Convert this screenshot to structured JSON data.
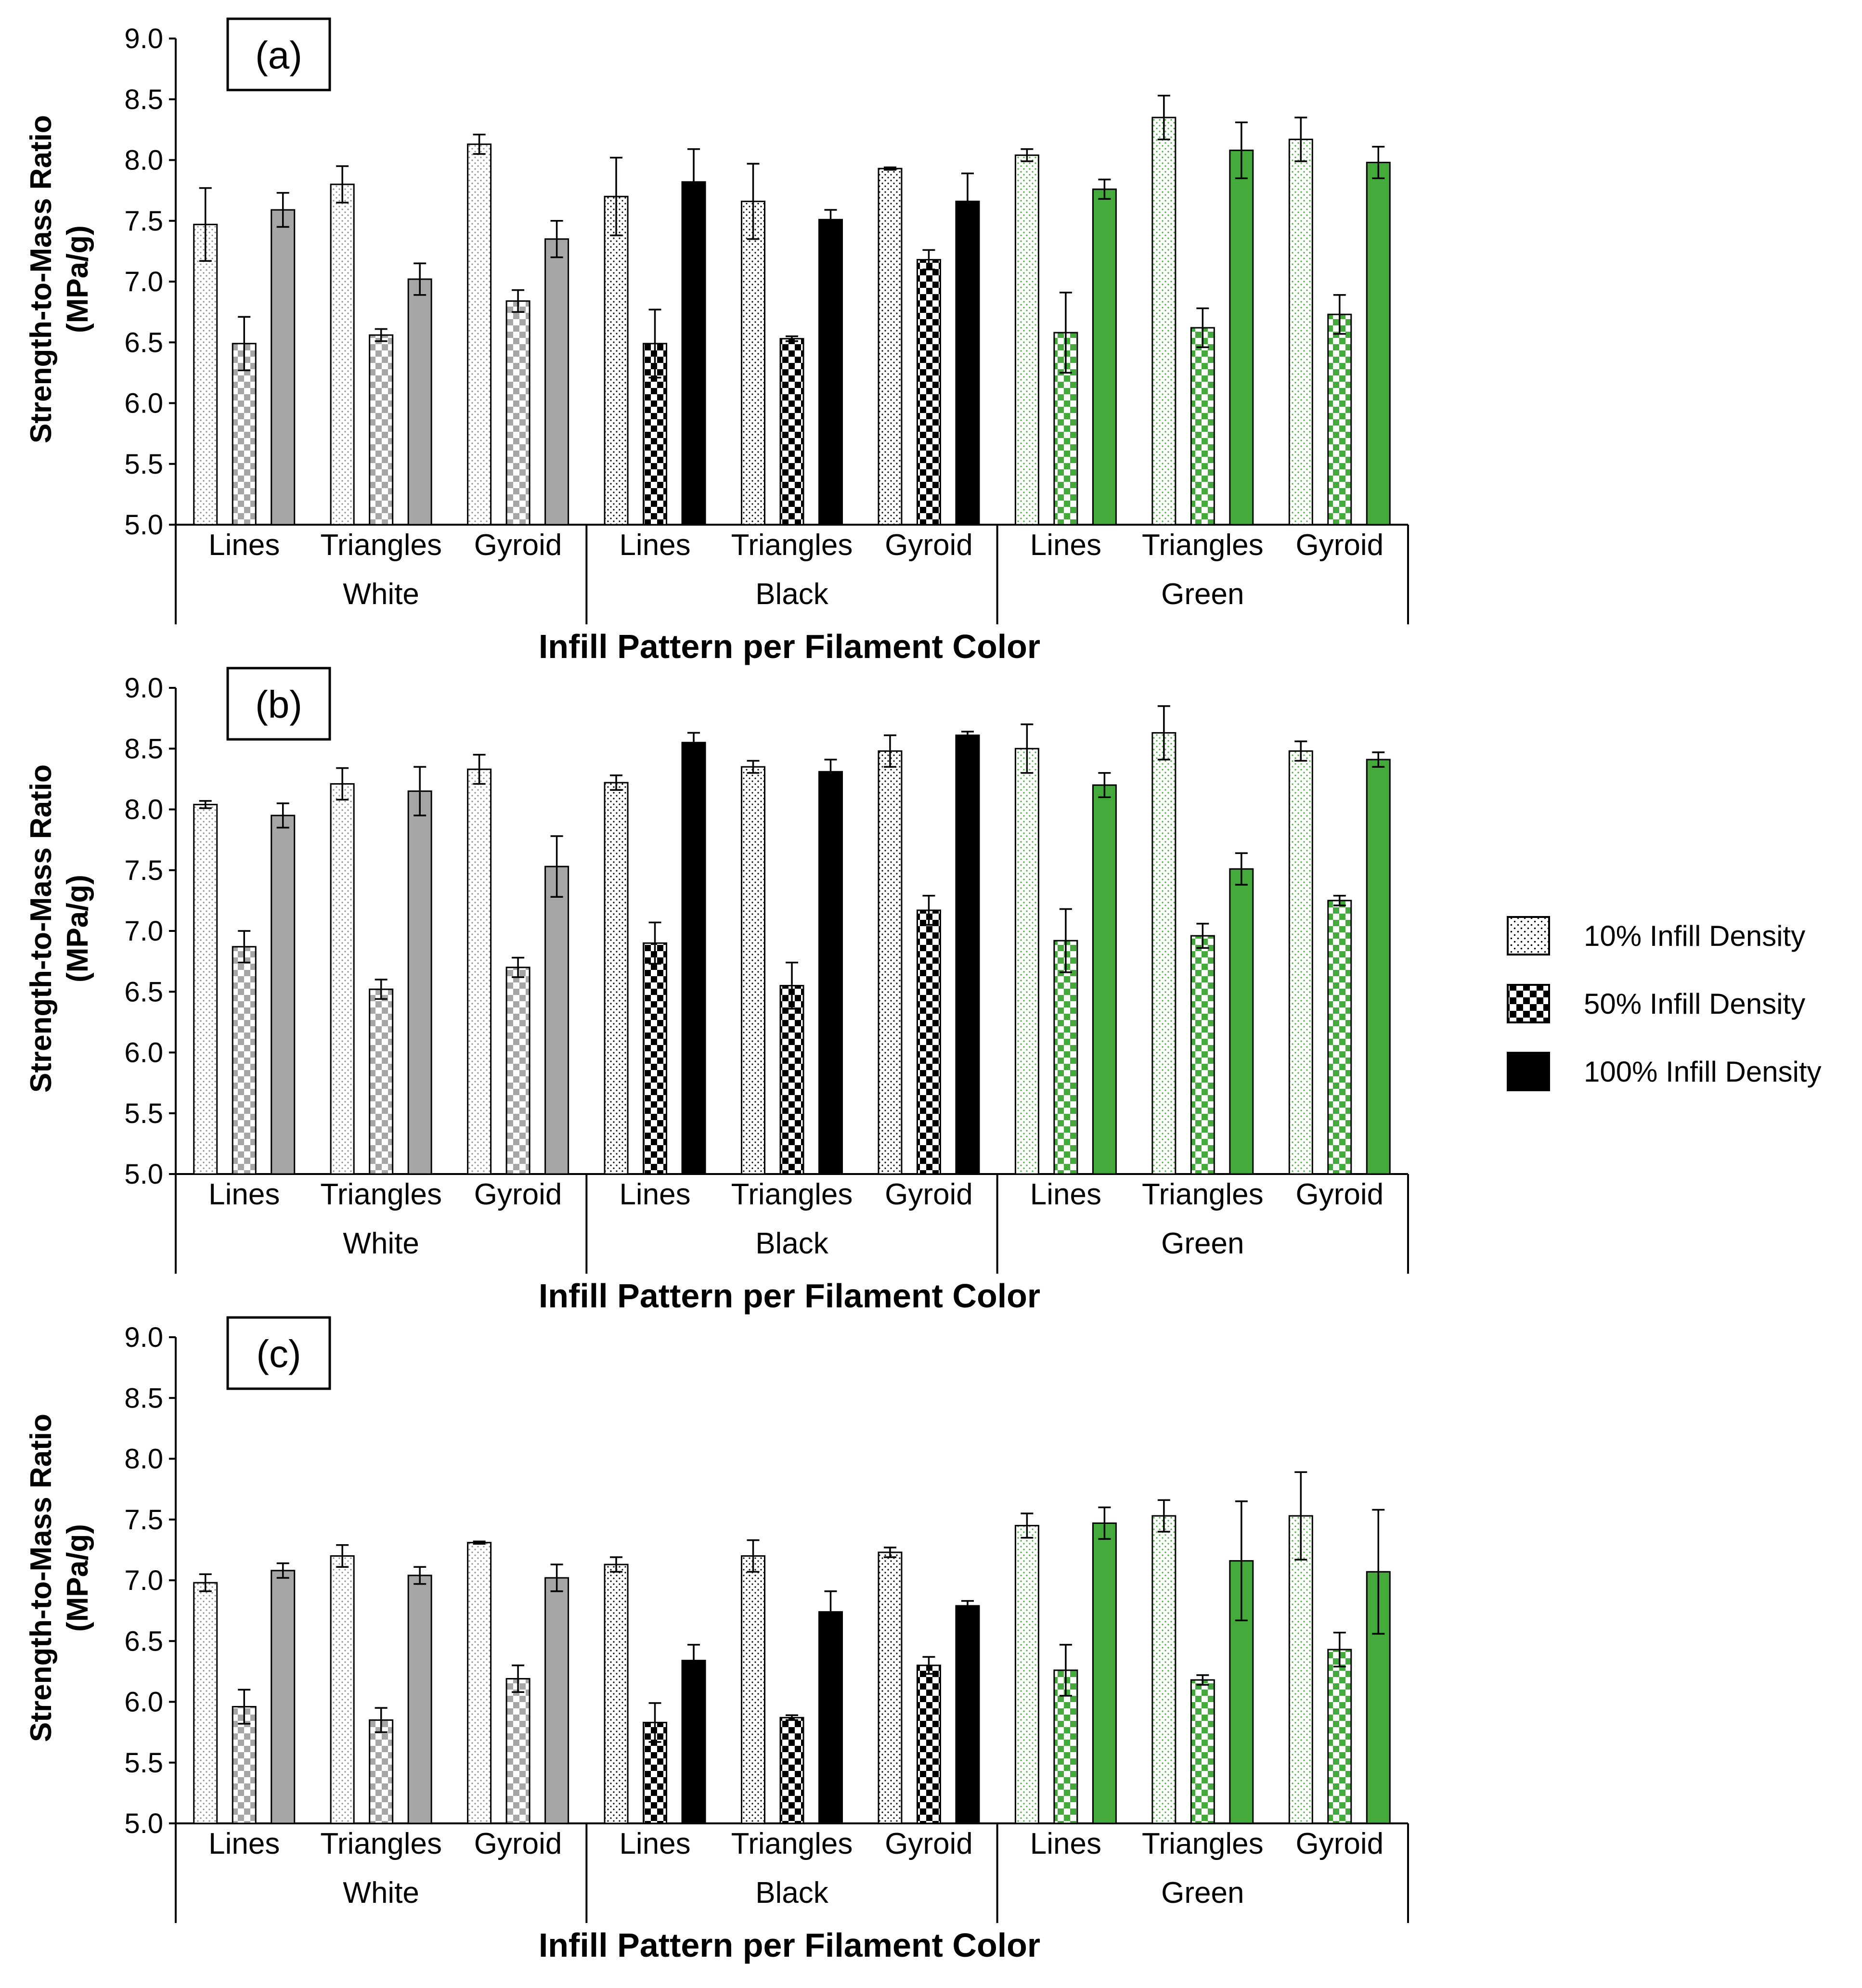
{
  "legend": [
    {
      "label": "10% Infill Density",
      "style": "dots"
    },
    {
      "label": "50% Infill Density",
      "style": "checker"
    },
    {
      "label": "100% Infill Density",
      "style": "solid"
    }
  ],
  "colors": {
    "White": "#a6a6a6",
    "Black": "#000000",
    "Green": "#44aa3c",
    "dot_white": "#8c8c8c",
    "dot_black": "#000000",
    "dot_green": "#44aa3c",
    "legend": "#000000"
  },
  "chart_data": [
    {
      "type": "bar",
      "title": "(a)",
      "xlabel": "Infill Pattern per Filament Color",
      "ylabel": [
        "Strength-to-Mass Ratio",
        "(MPa/g)"
      ],
      "ylim": [
        5.0,
        9.0
      ],
      "yticks": [
        "5.0",
        "5.5",
        "6.0",
        "6.5",
        "7.0",
        "7.5",
        "8.0",
        "8.5",
        "9.0"
      ],
      "groups": [
        {
          "color": "White",
          "categories": [
            {
              "name": "Lines",
              "values": [
                7.47,
                6.49,
                7.59
              ],
              "errors": [
                0.3,
                0.22,
                0.14
              ]
            },
            {
              "name": "Triangles",
              "values": [
                7.8,
                6.56,
                7.02
              ],
              "errors": [
                0.15,
                0.05,
                0.13
              ]
            },
            {
              "name": "Gyroid",
              "values": [
                8.13,
                6.84,
                7.35
              ],
              "errors": [
                0.08,
                0.09,
                0.15
              ]
            }
          ]
        },
        {
          "color": "Black",
          "categories": [
            {
              "name": "Lines",
              "values": [
                7.7,
                6.49,
                7.82
              ],
              "errors": [
                0.32,
                0.28,
                0.27
              ]
            },
            {
              "name": "Triangles",
              "values": [
                7.66,
                6.53,
                7.51
              ],
              "errors": [
                0.31,
                0.02,
                0.08
              ]
            },
            {
              "name": "Gyroid",
              "values": [
                7.93,
                7.18,
                7.66
              ],
              "errors": [
                0.01,
                0.08,
                0.23
              ]
            }
          ]
        },
        {
          "color": "Green",
          "categories": [
            {
              "name": "Lines",
              "values": [
                8.04,
                6.58,
                7.76
              ],
              "errors": [
                0.05,
                0.33,
                0.08
              ]
            },
            {
              "name": "Triangles",
              "values": [
                8.35,
                6.62,
                8.08
              ],
              "errors": [
                0.18,
                0.16,
                0.23
              ]
            },
            {
              "name": "Gyroid",
              "values": [
                8.17,
                6.73,
                7.98
              ],
              "errors": [
                0.18,
                0.16,
                0.13
              ]
            }
          ]
        }
      ]
    },
    {
      "type": "bar",
      "title": "(b)",
      "xlabel": "Infill Pattern per Filament Color",
      "ylabel": [
        "Strength-to-Mass Ratio",
        "(MPa/g)"
      ],
      "ylim": [
        5.0,
        9.0
      ],
      "yticks": [
        "5.0",
        "5.5",
        "6.0",
        "6.5",
        "7.0",
        "7.5",
        "8.0",
        "8.5",
        "9.0"
      ],
      "groups": [
        {
          "color": "White",
          "categories": [
            {
              "name": "Lines",
              "values": [
                8.04,
                6.87,
                7.95
              ],
              "errors": [
                0.03,
                0.13,
                0.1
              ]
            },
            {
              "name": "Triangles",
              "values": [
                8.21,
                6.52,
                8.15
              ],
              "errors": [
                0.13,
                0.08,
                0.2
              ]
            },
            {
              "name": "Gyroid",
              "values": [
                8.33,
                6.7,
                7.53
              ],
              "errors": [
                0.12,
                0.08,
                0.25
              ]
            }
          ]
        },
        {
          "color": "Black",
          "categories": [
            {
              "name": "Lines",
              "values": [
                8.22,
                6.9,
                8.55
              ],
              "errors": [
                0.06,
                0.17,
                0.08
              ]
            },
            {
              "name": "Triangles",
              "values": [
                8.35,
                6.55,
                8.31
              ],
              "errors": [
                0.05,
                0.19,
                0.1
              ]
            },
            {
              "name": "Gyroid",
              "values": [
                8.48,
                7.17,
                8.61
              ],
              "errors": [
                0.13,
                0.12,
                0.03
              ]
            }
          ]
        },
        {
          "color": "Green",
          "categories": [
            {
              "name": "Lines",
              "values": [
                8.5,
                6.92,
                8.2
              ],
              "errors": [
                0.2,
                0.26,
                0.1
              ]
            },
            {
              "name": "Triangles",
              "values": [
                8.63,
                6.96,
                7.51
              ],
              "errors": [
                0.22,
                0.1,
                0.13
              ]
            },
            {
              "name": "Gyroid",
              "values": [
                8.48,
                7.25,
                8.41
              ],
              "errors": [
                0.08,
                0.04,
                0.06
              ]
            }
          ]
        }
      ]
    },
    {
      "type": "bar",
      "title": "(c)",
      "xlabel": "Infill Pattern per Filament Color",
      "ylabel": [
        "Strength-to-Mass Ratio",
        "(MPa/g)"
      ],
      "ylim": [
        5.0,
        9.0
      ],
      "yticks": [
        "5.0",
        "5.5",
        "6.0",
        "6.5",
        "7.0",
        "7.5",
        "8.0",
        "8.5",
        "9.0"
      ],
      "groups": [
        {
          "color": "White",
          "categories": [
            {
              "name": "Lines",
              "values": [
                6.98,
                5.96,
                7.08
              ],
              "errors": [
                0.07,
                0.14,
                0.06
              ]
            },
            {
              "name": "Triangles",
              "values": [
                7.2,
                5.85,
                7.04
              ],
              "errors": [
                0.09,
                0.1,
                0.07
              ]
            },
            {
              "name": "Gyroid",
              "values": [
                7.31,
                6.19,
                7.02
              ],
              "errors": [
                0.01,
                0.11,
                0.11
              ]
            }
          ]
        },
        {
          "color": "Black",
          "categories": [
            {
              "name": "Lines",
              "values": [
                7.13,
                5.83,
                6.34
              ],
              "errors": [
                0.06,
                0.16,
                0.13
              ]
            },
            {
              "name": "Triangles",
              "values": [
                7.2,
                5.87,
                6.74
              ],
              "errors": [
                0.13,
                0.02,
                0.17
              ]
            },
            {
              "name": "Gyroid",
              "values": [
                7.23,
                6.3,
                6.79
              ],
              "errors": [
                0.04,
                0.07,
                0.04
              ]
            }
          ]
        },
        {
          "color": "Green",
          "categories": [
            {
              "name": "Lines",
              "values": [
                7.45,
                6.26,
                7.47
              ],
              "errors": [
                0.1,
                0.21,
                0.13
              ]
            },
            {
              "name": "Triangles",
              "values": [
                7.53,
                6.18,
                7.16
              ],
              "errors": [
                0.13,
                0.04,
                0.49
              ]
            },
            {
              "name": "Gyroid",
              "values": [
                7.53,
                6.43,
                7.07
              ],
              "errors": [
                0.36,
                0.14,
                0.51
              ]
            }
          ]
        }
      ]
    }
  ]
}
